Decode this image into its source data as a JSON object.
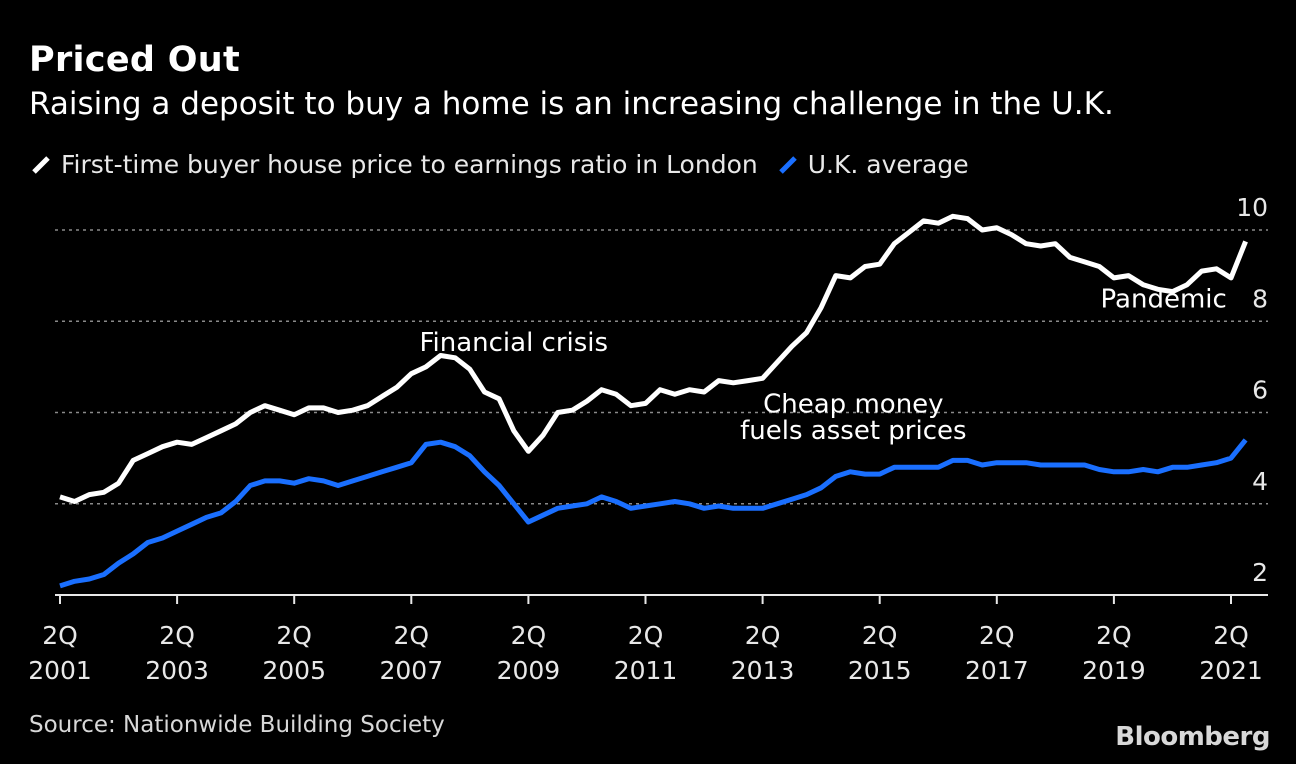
{
  "title": "Priced Out",
  "subtitle": "Raising a deposit to buy a home is an increasing challenge in the U.K.",
  "source": "Source: Nationwide Building Society",
  "brand": "Bloomberg",
  "colors": {
    "background": "#000000",
    "london": "#ffffff",
    "uk": "#1a6fff",
    "grid": "#8a8a8a"
  },
  "chart_data": {
    "type": "line",
    "title": "Priced Out",
    "xlabel": "",
    "ylabel": "",
    "ylim": [
      2,
      10
    ],
    "yticks": [
      2,
      4,
      6,
      8,
      10
    ],
    "xlim": [
      2001.25,
      2021.5
    ],
    "xticks": [
      {
        "value": 2001.25,
        "label1": "2Q",
        "label2": "2001"
      },
      {
        "value": 2003.25,
        "label1": "2Q",
        "label2": "2003"
      },
      {
        "value": 2005.25,
        "label1": "2Q",
        "label2": "2005"
      },
      {
        "value": 2007.25,
        "label1": "2Q",
        "label2": "2007"
      },
      {
        "value": 2009.25,
        "label1": "2Q",
        "label2": "2009"
      },
      {
        "value": 2011.25,
        "label1": "2Q",
        "label2": "2011"
      },
      {
        "value": 2013.25,
        "label1": "2Q",
        "label2": "2013"
      },
      {
        "value": 2015.25,
        "label1": "2Q",
        "label2": "2015"
      },
      {
        "value": 2017.25,
        "label1": "2Q",
        "label2": "2017"
      },
      {
        "value": 2019.25,
        "label1": "2Q",
        "label2": "2019"
      },
      {
        "value": 2021.25,
        "label1": "2Q",
        "label2": "2021"
      }
    ],
    "x_start": 2001.25,
    "x_step": 0.25,
    "series": [
      {
        "name": "First-time buyer house price to earnings ratio in London",
        "color": "#ffffff",
        "values": [
          4.15,
          4.05,
          4.2,
          4.25,
          4.45,
          4.95,
          5.1,
          5.25,
          5.35,
          5.3,
          5.45,
          5.6,
          5.75,
          6.0,
          6.15,
          6.05,
          5.95,
          6.1,
          6.1,
          6.0,
          6.05,
          6.15,
          6.35,
          6.55,
          6.85,
          7.0,
          7.25,
          7.2,
          6.95,
          6.45,
          6.3,
          5.6,
          5.15,
          5.5,
          6.0,
          6.05,
          6.25,
          6.5,
          6.4,
          6.15,
          6.2,
          6.5,
          6.4,
          6.5,
          6.45,
          6.7,
          6.65,
          6.7,
          6.75,
          7.1,
          7.45,
          7.75,
          8.3,
          9.0,
          8.95,
          9.2,
          9.25,
          9.7,
          9.95,
          10.2,
          10.15,
          10.3,
          10.25,
          10.0,
          10.05,
          9.9,
          9.7,
          9.65,
          9.7,
          9.4,
          9.3,
          9.2,
          8.95,
          9.0,
          8.8,
          8.7,
          8.65,
          8.8,
          9.1,
          9.15,
          8.95,
          9.75
        ]
      },
      {
        "name": "U.K. average",
        "color": "#1a6fff",
        "values": [
          2.2,
          2.3,
          2.35,
          2.45,
          2.7,
          2.9,
          3.15,
          3.25,
          3.4,
          3.55,
          3.7,
          3.8,
          4.05,
          4.4,
          4.5,
          4.5,
          4.45,
          4.55,
          4.5,
          4.4,
          4.5,
          4.6,
          4.7,
          4.8,
          4.9,
          5.3,
          5.35,
          5.25,
          5.05,
          4.7,
          4.4,
          4.0,
          3.6,
          3.75,
          3.9,
          3.95,
          4.0,
          4.15,
          4.05,
          3.9,
          3.95,
          4.0,
          4.05,
          4.0,
          3.9,
          3.95,
          3.9,
          3.9,
          3.9,
          4.0,
          4.1,
          4.2,
          4.35,
          4.6,
          4.7,
          4.65,
          4.65,
          4.8,
          4.8,
          4.8,
          4.8,
          4.95,
          4.95,
          4.85,
          4.9,
          4.9,
          4.9,
          4.85,
          4.85,
          4.85,
          4.85,
          4.75,
          4.7,
          4.7,
          4.75,
          4.7,
          4.8,
          4.8,
          4.85,
          4.9,
          5.0,
          5.4
        ]
      }
    ],
    "annotations": [
      {
        "text": "Financial crisis",
        "x": 2009.0,
        "y": 7.35,
        "anchor": "middle"
      },
      {
        "text": "Cheap money",
        "x": 2014.8,
        "y": 6.0,
        "anchor": "middle"
      },
      {
        "text": "fuels asset prices",
        "x": 2014.8,
        "y": 5.42,
        "anchor": "middle"
      },
      {
        "text": "Pandemic",
        "x": 2020.1,
        "y": 8.3,
        "anchor": "middle"
      }
    ]
  }
}
